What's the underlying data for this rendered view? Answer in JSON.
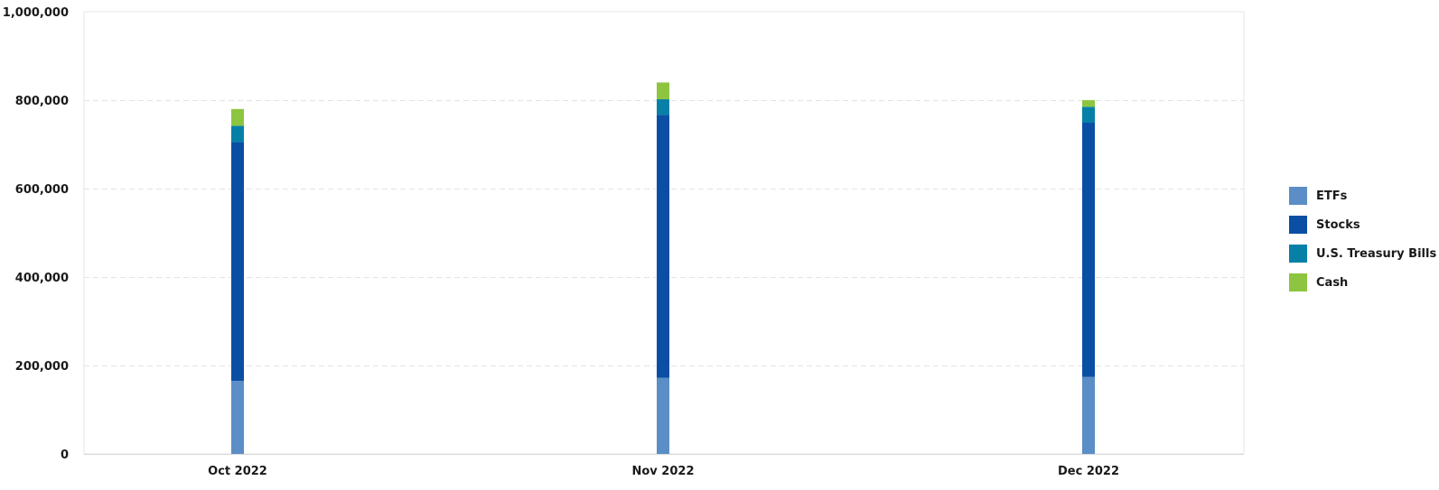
{
  "chart_data": {
    "type": "bar",
    "stacked": true,
    "categories": [
      "Oct 2022",
      "Nov 2022",
      "Dec 2022"
    ],
    "series": [
      {
        "name": "ETFs",
        "color": "#5b8ec6",
        "values": [
          165000,
          172000,
          174000
        ]
      },
      {
        "name": "Stocks",
        "color": "#0a4fa3",
        "values": [
          540000,
          595000,
          575000
        ]
      },
      {
        "name": "U.S. Treasury Bills",
        "color": "#0780a8",
        "values": [
          37000,
          35000,
          36000
        ]
      },
      {
        "name": "Cash",
        "color": "#8dc540",
        "values": [
          38000,
          38000,
          15000
        ]
      }
    ],
    "ylim": [
      0,
      1000000
    ],
    "yticks": [
      "0",
      "200,000",
      "400,000",
      "600,000",
      "800,000",
      "1,000,000"
    ],
    "ytick_values": [
      0,
      200000,
      400000,
      600000,
      800000,
      1000000
    ],
    "grid": true,
    "legend_position": "right",
    "title": "",
    "xlabel": "",
    "ylabel": ""
  }
}
